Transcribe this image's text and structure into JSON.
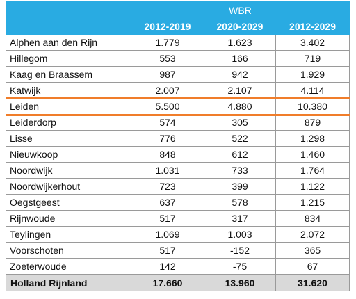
{
  "table": {
    "group_header": "WBR",
    "period_headers": [
      "2012-2019",
      "2020-2029",
      "2012-2029"
    ],
    "rows": [
      {
        "name": "Alphen aan den Rijn",
        "v1": "1.779",
        "v2": "1.623",
        "v3": "3.402"
      },
      {
        "name": "Hillegom",
        "v1": "553",
        "v2": "166",
        "v3": "719"
      },
      {
        "name": "Kaag en Braassem",
        "v1": "987",
        "v2": "942",
        "v3": "1.929"
      },
      {
        "name": "Katwijk",
        "v1": "2.007",
        "v2": "2.107",
        "v3": "4.114"
      },
      {
        "name": "Leiden",
        "v1": "5.500",
        "v2": "4.880",
        "v3": "10.380"
      },
      {
        "name": "Leiderdorp",
        "v1": "574",
        "v2": "305",
        "v3": "879"
      },
      {
        "name": "Lisse",
        "v1": "776",
        "v2": "522",
        "v3": "1.298"
      },
      {
        "name": "Nieuwkoop",
        "v1": "848",
        "v2": "612",
        "v3": "1.460"
      },
      {
        "name": "Noordwijk",
        "v1": "1.031",
        "v2": "733",
        "v3": "1.764"
      },
      {
        "name": "Noordwijkerhout",
        "v1": "723",
        "v2": "399",
        "v3": "1.122"
      },
      {
        "name": "Oegstgeest",
        "v1": "637",
        "v2": "578",
        "v3": "1.215"
      },
      {
        "name": "Rijnwoude",
        "v1": "517",
        "v2": "317",
        "v3": "834"
      },
      {
        "name": "Teylingen",
        "v1": "1.069",
        "v2": "1.003",
        "v3": "2.072"
      },
      {
        "name": "Voorschoten",
        "v1": "517",
        "v2": "-152",
        "v3": "365"
      },
      {
        "name": "Zoeterwoude",
        "v1": "142",
        "v2": "-75",
        "v3": "67"
      }
    ],
    "total": {
      "name": "Holland Rijnland",
      "v1": "17.660",
      "v2": "13.960",
      "v3": "31.620"
    },
    "highlighted_row": "Leiden"
  },
  "colors": {
    "header_blue": "#29abe2",
    "highlight_orange": "#f07d2a",
    "total_row_gray": "#d9d9d9"
  }
}
